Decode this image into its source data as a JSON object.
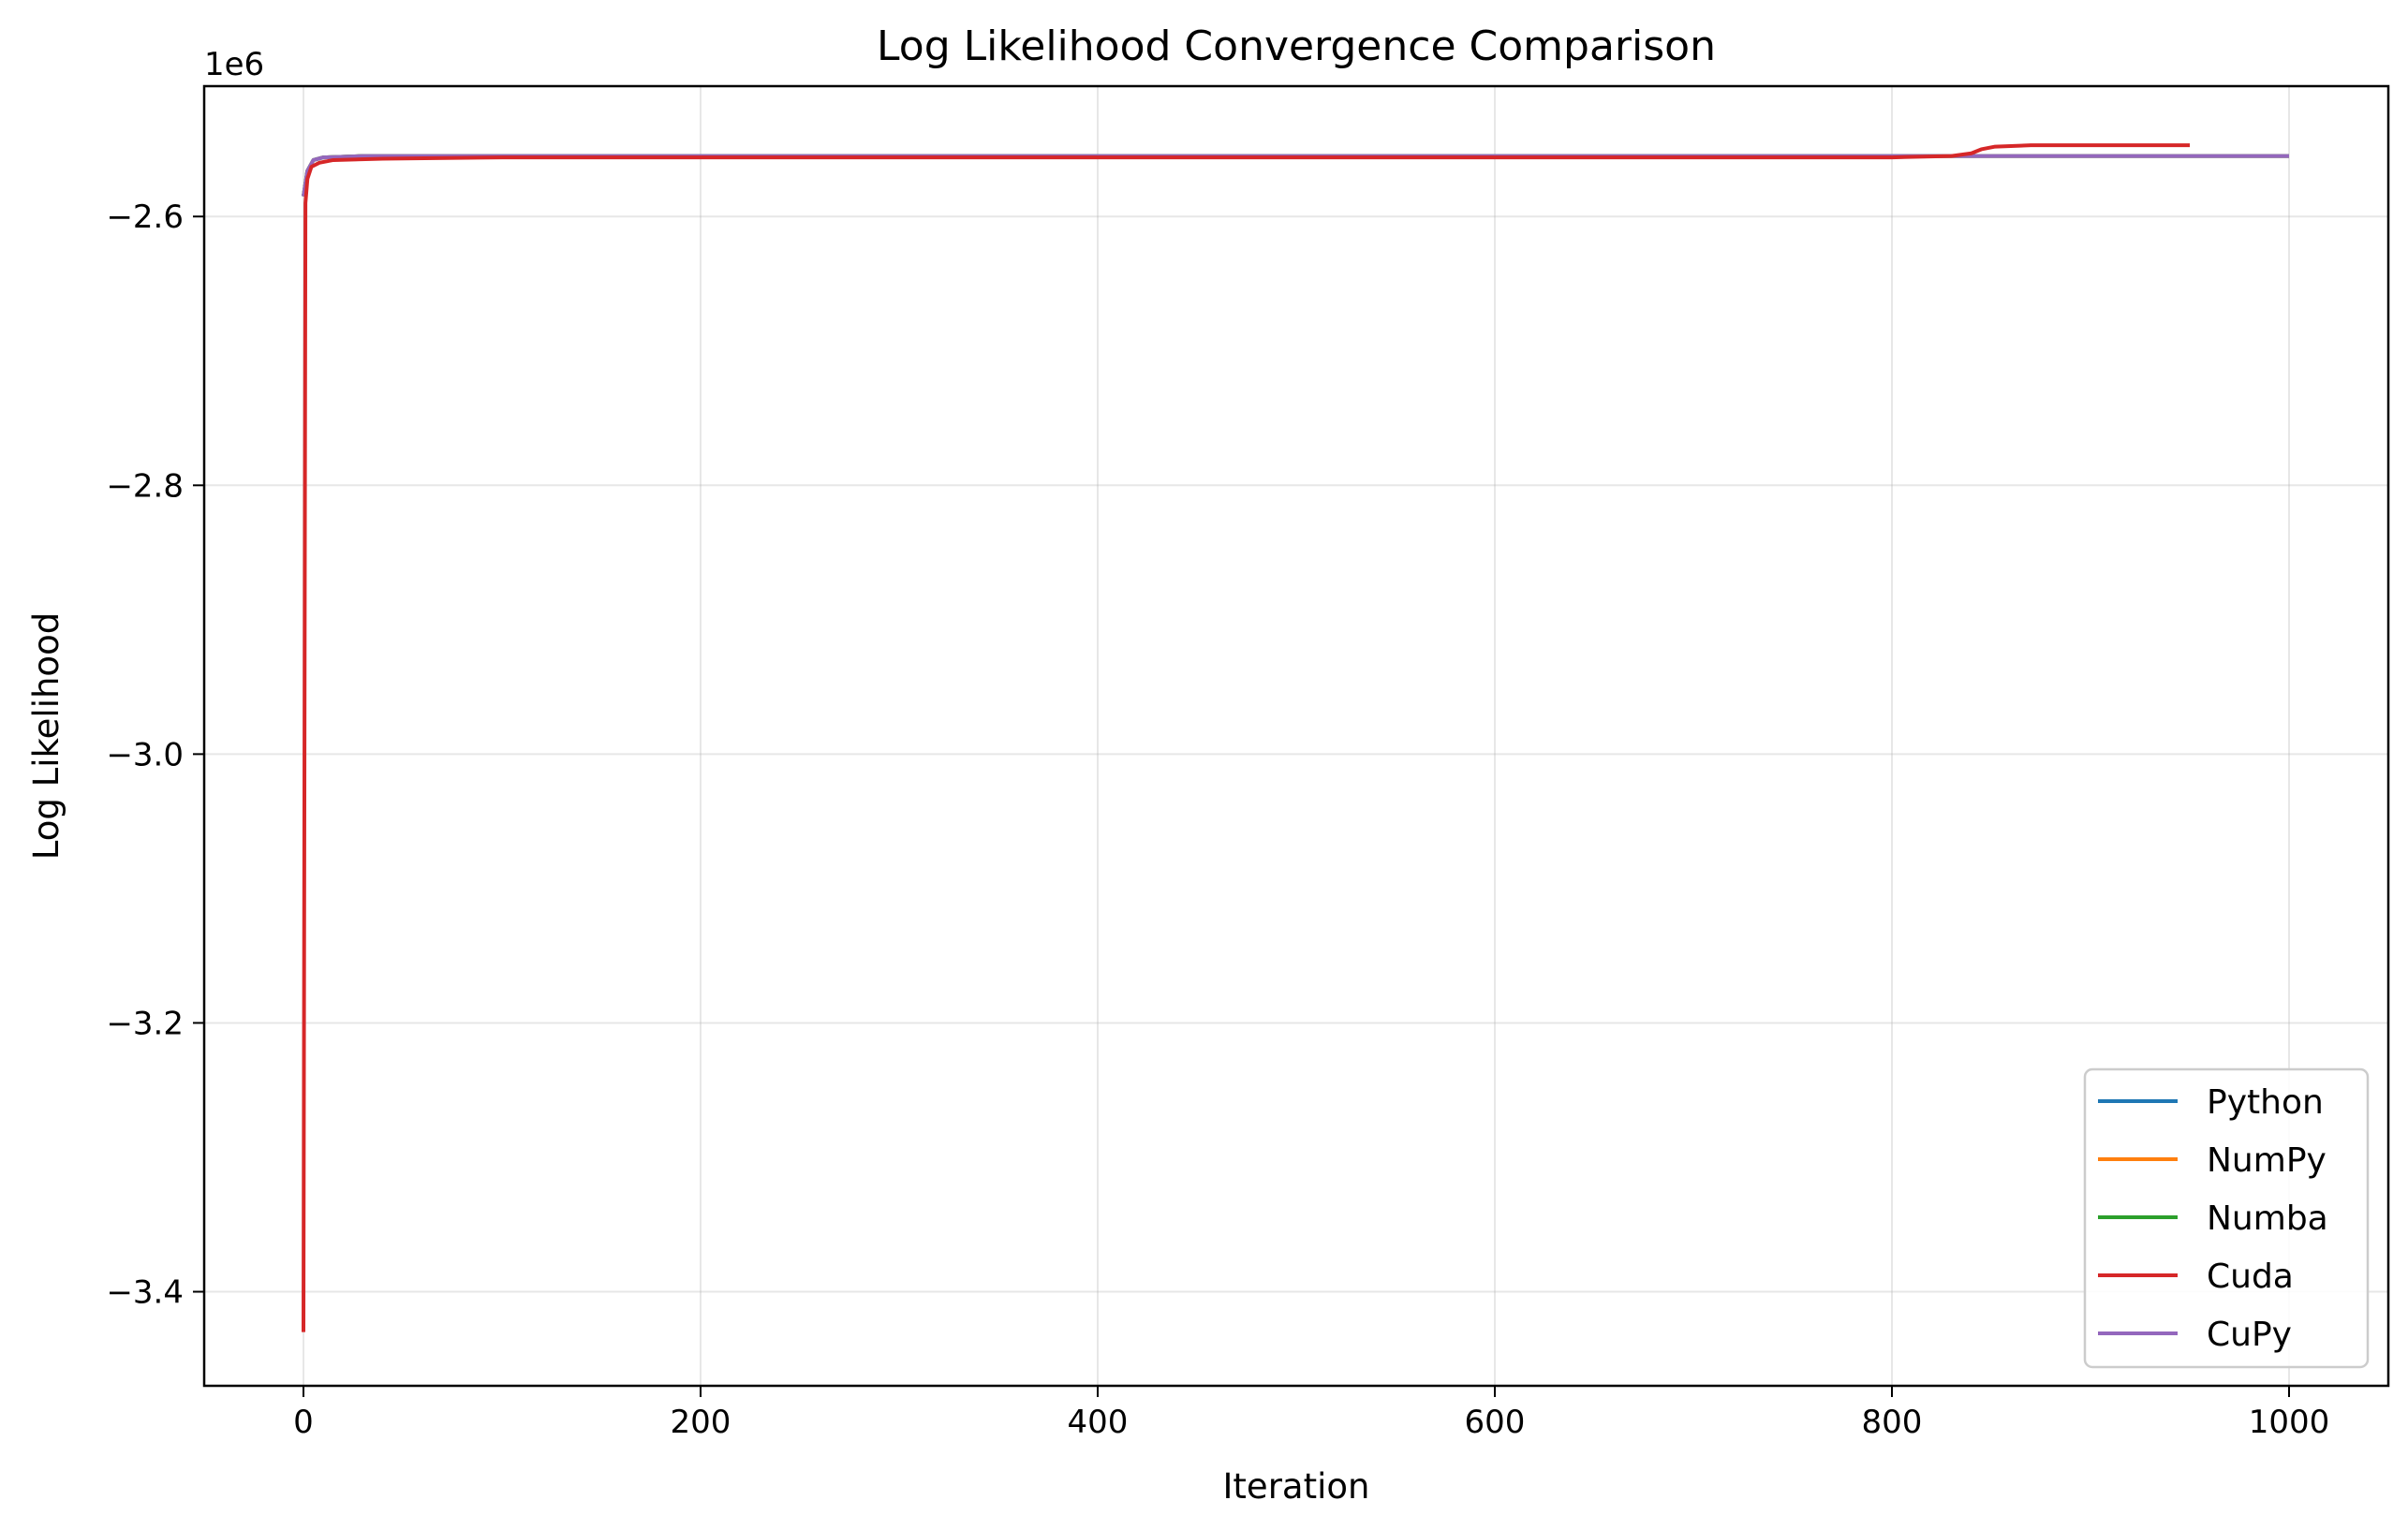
{
  "chart_data": {
    "type": "line",
    "title": "Log Likelihood Convergence Comparison",
    "xlabel": "Iteration",
    "ylabel": "Log Likelihood",
    "y_offset_label": "1e6",
    "xlim": [
      -50,
      1050
    ],
    "ylim": [
      -3.47,
      -2.503
    ],
    "x_ticks": [
      0,
      200,
      400,
      600,
      800,
      1000
    ],
    "x_tick_labels": [
      "0",
      "200",
      "400",
      "600",
      "800",
      "1000"
    ],
    "y_ticks": [
      -3.4,
      -3.2,
      -3.0,
      -2.8,
      -2.6
    ],
    "y_tick_labels": [
      "−3.4",
      "−3.2",
      "−3.0",
      "−2.8",
      "−2.6"
    ],
    "grid": true,
    "legend_position": "lower-right",
    "series": [
      {
        "name": "Python",
        "color": "#1f77b4",
        "points": [
          [
            0,
            -2.585
          ],
          [
            2,
            -2.566
          ],
          [
            5,
            -2.558
          ],
          [
            10,
            -2.556
          ],
          [
            30,
            -2.555
          ],
          [
            100,
            -2.555
          ],
          [
            500,
            -2.555
          ],
          [
            1000,
            -2.555
          ]
        ]
      },
      {
        "name": "NumPy",
        "color": "#ff7f0e",
        "points": [
          [
            0,
            -2.585
          ],
          [
            2,
            -2.566
          ],
          [
            5,
            -2.558
          ],
          [
            10,
            -2.556
          ],
          [
            30,
            -2.555
          ],
          [
            100,
            -2.555
          ],
          [
            500,
            -2.555
          ],
          [
            1000,
            -2.555
          ]
        ]
      },
      {
        "name": "Numba",
        "color": "#2ca02c",
        "points": [
          [
            0,
            -2.585
          ],
          [
            2,
            -2.566
          ],
          [
            5,
            -2.558
          ],
          [
            10,
            -2.556
          ],
          [
            30,
            -2.555
          ],
          [
            100,
            -2.555
          ],
          [
            500,
            -2.555
          ],
          [
            1000,
            -2.555
          ]
        ]
      },
      {
        "name": "Cuda",
        "color": "#d62728",
        "points": [
          [
            0,
            -3.43
          ],
          [
            1,
            -2.59
          ],
          [
            2,
            -2.572
          ],
          [
            4,
            -2.563
          ],
          [
            8,
            -2.56
          ],
          [
            15,
            -2.558
          ],
          [
            40,
            -2.557
          ],
          [
            100,
            -2.556
          ],
          [
            300,
            -2.556
          ],
          [
            600,
            -2.556
          ],
          [
            800,
            -2.556
          ],
          [
            830,
            -2.555
          ],
          [
            840,
            -2.553
          ],
          [
            845,
            -2.55
          ],
          [
            852,
            -2.548
          ],
          [
            870,
            -2.547
          ],
          [
            950,
            -2.547
          ]
        ]
      },
      {
        "name": "CuPy",
        "color": "#9467bd",
        "points": [
          [
            0,
            -2.585
          ],
          [
            2,
            -2.566
          ],
          [
            5,
            -2.558
          ],
          [
            10,
            -2.556
          ],
          [
            30,
            -2.555
          ],
          [
            100,
            -2.555
          ],
          [
            500,
            -2.555
          ],
          [
            1000,
            -2.555
          ]
        ]
      }
    ]
  }
}
